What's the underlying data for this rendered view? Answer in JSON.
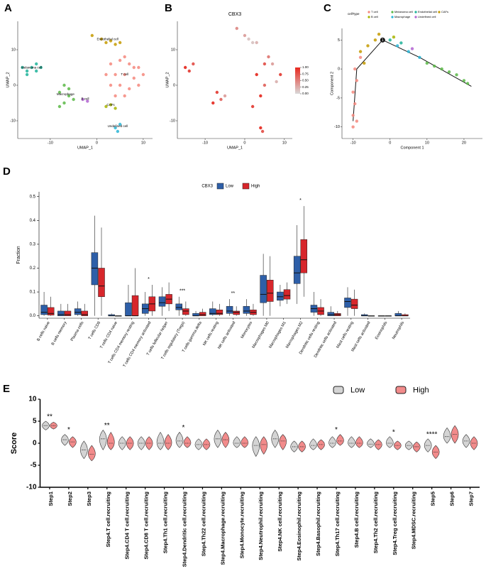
{
  "chart_data": [
    {
      "type": "scatter",
      "panel": "A",
      "x_label": "UMAP_1",
      "y_label": "UMAP_2",
      "xlim": [
        -17,
        12
      ],
      "ylim": [
        -15,
        18
      ],
      "xticks": [
        -10,
        0,
        10
      ],
      "yticks": [
        -10,
        0,
        10
      ],
      "cluster_labels": true,
      "series": [
        {
          "name": "T cell",
          "color": "#f4877c",
          "x": [
            3,
            5,
            7,
            9,
            2,
            4,
            6,
            8,
            10,
            3,
            5,
            7,
            9,
            4,
            6,
            8,
            6
          ],
          "y": [
            6,
            7,
            6,
            5,
            3,
            3,
            3,
            2,
            3,
            0,
            0,
            -1,
            0,
            -3,
            -3,
            5,
            8
          ]
        },
        {
          "name": "Endothelial cell",
          "color": "#c49a00",
          "x": [
            -1,
            1,
            2,
            3,
            4,
            5
          ],
          "y": [
            14,
            13,
            12,
            12.5,
            11.5,
            12
          ]
        },
        {
          "name": "CAFs",
          "color": "#a8b400",
          "x": [
            2,
            3,
            4
          ],
          "y": [
            -6,
            -5.5,
            -6.5
          ]
        },
        {
          "name": "Melanoma cell",
          "color": "#1fb39a",
          "x": [
            -16,
            -15,
            -14,
            -13,
            -12,
            -15,
            -13
          ],
          "y": [
            5,
            4,
            5,
            6,
            5,
            3,
            4
          ]
        },
        {
          "name": "Macrophage",
          "color": "#5ab947",
          "x": [
            -8,
            -7,
            -6,
            -7,
            -5,
            -8,
            -6
          ],
          "y": [
            -2,
            0,
            -3,
            -5,
            -4,
            -6,
            -1
          ]
        },
        {
          "name": "B cell",
          "color": "#b163d1",
          "x": [
            -3,
            -2
          ],
          "y": [
            -4,
            -4.5
          ]
        },
        {
          "name": "Undefined cell",
          "color": "#29b5d6",
          "x": [
            4,
            5,
            4.5
          ],
          "y": [
            -12,
            -11,
            -13
          ]
        }
      ]
    },
    {
      "type": "scatter",
      "panel": "B",
      "title": "CBX3",
      "x_label": "UMAP_1",
      "y_label": "UMAP_2",
      "xlim": [
        -17,
        12
      ],
      "ylim": [
        -15,
        18
      ],
      "xticks": [
        -10,
        0,
        10
      ],
      "yticks": [
        -10,
        0,
        10
      ],
      "x": [
        -15,
        -14,
        -13,
        -7,
        -6,
        -8,
        -5,
        -2,
        1,
        3,
        5,
        3,
        5,
        7,
        9,
        4,
        6,
        8,
        2,
        4,
        4.5,
        0,
        2
      ],
      "y": [
        5,
        4,
        6,
        -2,
        -4,
        -5,
        -3,
        16,
        13,
        12,
        6,
        3,
        0,
        6,
        3,
        -3,
        8,
        1,
        -6,
        -12,
        -13,
        14,
        12
      ],
      "expression": [
        0.9,
        0.8,
        0.7,
        0.8,
        0.6,
        0.9,
        0.3,
        0.4,
        0.1,
        0.2,
        0.7,
        0.9,
        0.6,
        0.3,
        0.8,
        0.9,
        0.5,
        0.2,
        0.8,
        0.9,
        0.7,
        0.3,
        0.1
      ],
      "colorscale": [
        "#d9d9d9",
        "#e8281e"
      ],
      "zlim": [
        0,
        1
      ],
      "zticks": [
        {
          "value": 0,
          "label": "0.00"
        },
        {
          "value": 0.25,
          "label": "0.25"
        },
        {
          "value": 0.5,
          "label": "0.50"
        },
        {
          "value": 0.75,
          "label": "0.75"
        },
        {
          "value": 1,
          "label": "1.00"
        }
      ]
    },
    {
      "type": "scatter",
      "panel": "C",
      "x_label": "Component 1",
      "y_label": "Component 2",
      "legend_title": "cellType",
      "xlim": [
        -13,
        25
      ],
      "ylim": [
        -12,
        7
      ],
      "xticks": [
        -10,
        0,
        10,
        20
      ],
      "yticks": [
        -10,
        -5,
        0,
        5
      ],
      "trajectory": {
        "x": [
          -10,
          -9,
          -2,
          8,
          22
        ],
        "y": [
          -9,
          0,
          5,
          2,
          -3
        ]
      },
      "branch_node": {
        "x": -2,
        "y": 5,
        "label": "1"
      },
      "series": [
        {
          "name": "T cell",
          "color": "#f4877c",
          "x": [
            -10,
            -10,
            -9.5,
            -10,
            -9,
            -9.5,
            -8,
            -9
          ],
          "y": [
            -10,
            -8,
            -6,
            -4,
            -2,
            0,
            2,
            -9
          ]
        },
        {
          "name": "Melanoma cell",
          "color": "#5ab947",
          "x": [
            10,
            14,
            18,
            21,
            12,
            16,
            20
          ],
          "y": [
            1,
            0,
            -1,
            -2.5,
            0.5,
            -0.5,
            -2
          ]
        },
        {
          "name": "Endothelial cell",
          "color": "#1fb39a",
          "x": [
            0,
            3
          ],
          "y": [
            5,
            4.5
          ]
        },
        {
          "name": "CAFs",
          "color": "#c49a00",
          "x": [
            -8,
            -6,
            -4,
            -7,
            -3
          ],
          "y": [
            3,
            4,
            5,
            1,
            6
          ]
        },
        {
          "name": "B cell",
          "color": "#a8b400",
          "x": [
            1
          ],
          "y": [
            5.5
          ]
        },
        {
          "name": "Macrophage",
          "color": "#29b5d6",
          "x": [
            2,
            5,
            8
          ],
          "y": [
            4,
            3,
            2
          ]
        },
        {
          "name": "Undefined cell",
          "color": "#b163d1",
          "x": [
            6
          ],
          "y": [
            3.5
          ]
        }
      ]
    },
    {
      "type": "box",
      "panel": "D",
      "y_label": "Fraction",
      "legend_title": "CBX3",
      "ylim": [
        -0.01,
        0.52
      ],
      "yticks": [
        {
          "value": 0,
          "label": "0.0"
        },
        0.1,
        0.2,
        0.3,
        0.4,
        0.5
      ],
      "categories": [
        "B cells naive",
        "B cells memory",
        "Plasma cells",
        "T cells CD8",
        "T cells CD4 naive",
        "T cells CD4 memory resting",
        "T cells CD4 memory activated",
        "T cells follicular helper",
        "T cells regulatory (Tregs)",
        "T cells gamma delta",
        "NK cells resting",
        "NK cells activated",
        "Monocytes",
        "Macrophages M0",
        "Macrophages M1",
        "Macrophages M2",
        "Dendritic cells resting",
        "Dendritic cells activated",
        "Mast cells resting",
        "Mast cells activated",
        "Eosinophils",
        "Neutrophils"
      ],
      "significance": [
        null,
        null,
        null,
        null,
        null,
        null,
        "*",
        null,
        "***",
        null,
        null,
        "**",
        null,
        null,
        null,
        "*",
        null,
        null,
        null,
        null,
        null,
        null
      ],
      "series": [
        {
          "name": "Low",
          "color": "#2e5fa8",
          "values": [
            [
              0,
              0.005,
              0.015,
              0.045,
              0.1
            ],
            [
              0,
              0,
              0.005,
              0.02,
              0.05
            ],
            [
              0,
              0.005,
              0.015,
              0.03,
              0.06
            ],
            [
              0,
              0.13,
              0.2,
              0.265,
              0.42
            ],
            [
              0,
              0,
              0,
              0.005,
              0.01
            ],
            [
              0,
              0,
              0,
              0.055,
              0.13
            ],
            [
              0,
              0.01,
              0.03,
              0.05,
              0.1
            ],
            [
              0,
              0.04,
              0.055,
              0.08,
              0.12
            ],
            [
              0,
              0.025,
              0.035,
              0.05,
              0.08
            ],
            [
              0,
              0,
              0,
              0.01,
              0.02
            ],
            [
              0,
              0.005,
              0.01,
              0.03,
              0.06
            ],
            [
              0,
              0.01,
              0.02,
              0.04,
              0.07
            ],
            [
              0,
              0.01,
              0.02,
              0.04,
              0.07
            ],
            [
              0,
              0.055,
              0.09,
              0.17,
              0.26
            ],
            [
              0.04,
              0.065,
              0.08,
              0.1,
              0.13
            ],
            [
              0.05,
              0.135,
              0.18,
              0.25,
              0.38
            ],
            [
              0,
              0.015,
              0.03,
              0.045,
              0.1
            ],
            [
              0,
              0,
              0.005,
              0.015,
              0.04
            ],
            [
              0,
              0.035,
              0.06,
              0.075,
              0.12
            ],
            [
              0,
              0,
              0,
              0.005,
              0.01
            ],
            [
              0,
              0,
              0,
              0,
              0
            ],
            [
              0,
              0,
              0,
              0.01,
              0.02
            ]
          ]
        },
        {
          "name": "High",
          "color": "#d7262b",
          "values": [
            [
              0,
              0.003,
              0.01,
              0.035,
              0.08
            ],
            [
              0,
              0,
              0.005,
              0.02,
              0.05
            ],
            [
              0,
              0,
              0.005,
              0.02,
              0.05
            ],
            [
              0,
              0.08,
              0.125,
              0.2,
              0.37
            ],
            [
              0,
              0,
              0,
              0,
              0
            ],
            [
              0,
              0,
              0,
              0.085,
              0.2
            ],
            [
              0,
              0.02,
              0.05,
              0.08,
              0.13
            ],
            [
              0.02,
              0.05,
              0.07,
              0.09,
              0.14
            ],
            [
              0,
              0.005,
              0.02,
              0.03,
              0.06
            ],
            [
              0,
              0,
              0.005,
              0.015,
              0.03
            ],
            [
              0,
              0.005,
              0.01,
              0.025,
              0.05
            ],
            [
              0,
              0.005,
              0.015,
              0.02,
              0.04
            ],
            [
              0,
              0.005,
              0.015,
              0.025,
              0.05
            ],
            [
              0,
              0.06,
              0.095,
              0.15,
              0.25
            ],
            [
              0.05,
              0.07,
              0.085,
              0.11,
              0.14
            ],
            [
              0.08,
              0.18,
              0.235,
              0.32,
              0.46
            ],
            [
              0,
              0.005,
              0.02,
              0.035,
              0.07
            ],
            [
              0,
              0,
              0.005,
              0.01,
              0.02
            ],
            [
              0,
              0.03,
              0.045,
              0.07,
              0.11
            ],
            [
              0,
              0,
              0,
              0,
              0
            ],
            [
              0,
              0,
              0,
              0,
              0
            ],
            [
              0,
              0,
              0,
              0.005,
              0.01
            ]
          ]
        }
      ]
    },
    {
      "type": "violin",
      "panel": "E",
      "y_label": "Score",
      "ylim": [
        -10,
        10
      ],
      "yticks": [
        -10,
        -5,
        0,
        5,
        10
      ],
      "categories": [
        "Step1",
        "Step2",
        "Step3",
        "Step4.T cell.recruiting",
        "Step4.CD4 T cell.recruiting",
        "Step4.CD8 T cell.recruiting",
        "Step4.Th1 cell.recruiting",
        "Step4.Dendritic cell.recruiting",
        "Step4.Th22 cell.recruiting",
        "Step4.Macrophage.recruiting",
        "Step4.Monocyte.recruiting",
        "Step4.Neutrophil.recruiting",
        "Step4.NK cell.recruiting",
        "Step4.Eosinophil.recruiting",
        "Step4.Basophil.recruiting",
        "Step4.Th17 cell.recruiting",
        "Step4.B cell.recruiting",
        "Step4.Th2 cell.recruiting",
        "Step4.Treg cell.recruiting",
        "Step4.MDSC.recruiting",
        "Step5",
        "Step6",
        "Step7"
      ],
      "significance": [
        "**",
        "*",
        null,
        "**",
        null,
        null,
        null,
        "*",
        null,
        null,
        null,
        null,
        null,
        null,
        null,
        "*",
        null,
        null,
        "*",
        null,
        "****",
        null,
        null
      ],
      "series": [
        {
          "name": "Low",
          "color": "#d4d4d4",
          "values": [
            [
              3,
              4,
              5
            ],
            [
              -0.5,
              0.8,
              2
            ],
            [
              -3.5,
              -1.5,
              0.5
            ],
            [
              -1.5,
              1,
              3
            ],
            [
              -1.5,
              0,
              1.5
            ],
            [
              -1.5,
              0,
              1.5
            ],
            [
              -1.5,
              0,
              2.5
            ],
            [
              -1,
              0.5,
              2.5
            ],
            [
              -1.5,
              -0.3,
              1
            ],
            [
              -1,
              1,
              3
            ],
            [
              -1,
              0,
              1.5
            ],
            [
              -3,
              -0.5,
              1.5
            ],
            [
              -1,
              1,
              3
            ],
            [
              -2,
              -0.8,
              0.5
            ],
            [
              -1.5,
              -0.5,
              1
            ],
            [
              -1,
              0,
              1.5
            ],
            [
              -1,
              0,
              1.5
            ],
            [
              -1,
              -0.2,
              1
            ],
            [
              -1,
              0,
              1.5
            ],
            [
              -1.5,
              -0.5,
              0.5
            ],
            [
              -2,
              -0.5,
              1
            ],
            [
              0,
              1.5,
              3.5
            ],
            [
              -1,
              0.5,
              2
            ]
          ]
        },
        {
          "name": "High",
          "color": "#f28b8b",
          "values": [
            [
              3.2,
              4,
              4.8
            ],
            [
              -1,
              0.3,
              1.5
            ],
            [
              -4,
              -2.5,
              -0.5
            ],
            [
              -1.5,
              0,
              2.5
            ],
            [
              -1.5,
              0,
              1.5
            ],
            [
              -1.5,
              0,
              1.5
            ],
            [
              -1.5,
              0,
              2
            ],
            [
              -1,
              0,
              1.5
            ],
            [
              -1.5,
              -0.3,
              1
            ],
            [
              -1,
              0.8,
              2.5
            ],
            [
              -1,
              0,
              1.5
            ],
            [
              -2.5,
              -0.3,
              1.5
            ],
            [
              -1.5,
              0.5,
              2
            ],
            [
              -2,
              -0.8,
              0.5
            ],
            [
              -1.5,
              -0.3,
              0.8
            ],
            [
              -0.5,
              0.5,
              2
            ],
            [
              -1,
              0,
              1.5
            ],
            [
              -1.5,
              -0.3,
              0.8
            ],
            [
              -1.5,
              -0.5,
              0.5
            ],
            [
              -2,
              -0.8,
              0.3
            ],
            [
              -3.5,
              -2,
              -0.5
            ],
            [
              0,
              2,
              4
            ],
            [
              -1.5,
              0,
              1.5
            ]
          ]
        }
      ]
    }
  ]
}
